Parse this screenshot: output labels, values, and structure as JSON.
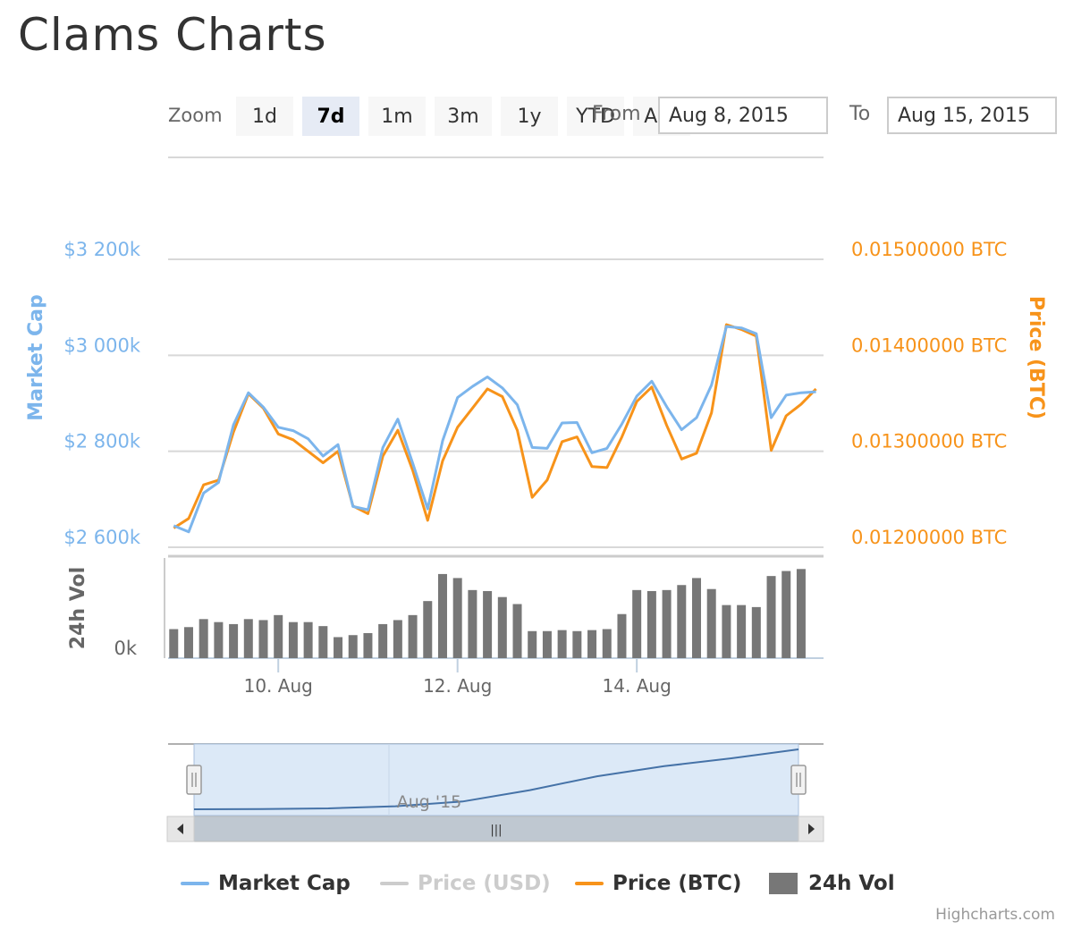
{
  "title": "Clams Charts",
  "zoom": {
    "label": "Zoom",
    "buttons": [
      "1d",
      "7d",
      "1m",
      "3m",
      "1y",
      "YTD",
      "ALL"
    ],
    "active": "7d"
  },
  "range": {
    "from_label": "From",
    "from_value": "Aug 8, 2015",
    "to_label": "To",
    "to_value": "Aug 15, 2015"
  },
  "colors": {
    "market_cap": "#7cb5ec",
    "price_usd": "#cccccc",
    "price_btc": "#f7931a",
    "volume": "#777777",
    "navigator_fill": "#dce9f7",
    "navigator_line": "#4572a7"
  },
  "chart_data": {
    "type": "line",
    "x_ticks": [
      "10. Aug",
      "12. Aug",
      "14. Aug"
    ],
    "x_ticks_time": [
      40,
      88,
      136
    ],
    "x_range_hours": [
      10.5,
      186
    ],
    "left_axis": {
      "title": "Market Cap",
      "tick_labels": [
        "$3 200k",
        "$3 000k",
        "$2 800k",
        "$2 600k"
      ],
      "tick_values": [
        3200,
        3000,
        2800,
        2600
      ],
      "range": [
        2600,
        3200
      ]
    },
    "right_axis": {
      "title": "Price (BTC)",
      "tick_labels": [
        "0.01500000 BTC",
        "0.01400000 BTC",
        "0.01300000 BTC",
        "0.01200000 BTC"
      ],
      "tick_values": [
        0.015,
        0.014,
        0.013,
        0.012
      ],
      "range": [
        0.012,
        0.015
      ]
    },
    "volume_axis": {
      "title": "24h Vol",
      "tick_labels": [
        "0k"
      ],
      "range": [
        0,
        100
      ]
    },
    "series": [
      {
        "name": "Market Cap",
        "x_hours": [
          12,
          16,
          20,
          24,
          28,
          32,
          36,
          40,
          44,
          48,
          52,
          56,
          60,
          64,
          68,
          72,
          76,
          80,
          84,
          88,
          92,
          96,
          100,
          104,
          108,
          112,
          116,
          120,
          124,
          128,
          132,
          136,
          140,
          144,
          148,
          152,
          156,
          160,
          164,
          168,
          172,
          176,
          180,
          184
        ],
        "values": [
          2645,
          2632,
          2713,
          2735,
          2855,
          2922,
          2892,
          2850,
          2843,
          2826,
          2790,
          2814,
          2685,
          2678,
          2808,
          2867,
          2775,
          2680,
          2822,
          2912,
          2935,
          2955,
          2932,
          2897,
          2808,
          2806,
          2859,
          2860,
          2797,
          2806,
          2857,
          2915,
          2946,
          2893,
          2845,
          2870,
          2938,
          3060,
          3057,
          3045,
          2870,
          2917,
          2922,
          2924
        ]
      },
      {
        "name": "Price (USD)",
        "hidden": true,
        "values": []
      },
      {
        "name": "Price (BTC)",
        "x_hours": [
          12,
          16,
          20,
          24,
          28,
          32,
          36,
          40,
          44,
          48,
          52,
          56,
          60,
          64,
          68,
          72,
          76,
          80,
          84,
          88,
          92,
          96,
          100,
          104,
          108,
          112,
          116,
          120,
          124,
          128,
          132,
          136,
          140,
          144,
          148,
          152,
          156,
          160,
          164,
          168,
          172,
          176,
          180,
          184
        ],
        "values": [
          0.0122,
          0.0123,
          0.01265,
          0.0127,
          0.0132,
          0.0136,
          0.01345,
          0.01318,
          0.01312,
          0.013,
          0.01288,
          0.013,
          0.01243,
          0.01235,
          0.01295,
          0.01322,
          0.0128,
          0.01228,
          0.0129,
          0.01325,
          0.01345,
          0.01365,
          0.01357,
          0.01322,
          0.01252,
          0.0127,
          0.0131,
          0.01315,
          0.01284,
          0.01283,
          0.01315,
          0.01352,
          0.01367,
          0.01327,
          0.01292,
          0.01298,
          0.0134,
          0.01432,
          0.01427,
          0.0142,
          0.01301,
          0.01337,
          0.01349,
          0.01365
        ]
      },
      {
        "name": "24h Vol",
        "type": "bar",
        "x_hours": [
          12,
          16,
          20,
          24,
          28,
          32,
          36,
          40,
          44,
          48,
          52,
          56,
          60,
          64,
          68,
          72,
          76,
          80,
          84,
          88,
          92,
          96,
          100,
          104,
          108,
          112,
          116,
          120,
          124,
          128,
          132,
          136,
          140,
          144,
          148,
          152,
          156,
          160,
          164,
          168,
          172,
          176,
          180,
          184
        ],
        "values": [
          29,
          31,
          39,
          36,
          34,
          39,
          38,
          43,
          36,
          36,
          32,
          21,
          23,
          25,
          34,
          38,
          43,
          57,
          84,
          80,
          68,
          67,
          61,
          54,
          27,
          27,
          28,
          27,
          28,
          29,
          44,
          68,
          67,
          68,
          73,
          80,
          69,
          53,
          53,
          51,
          82,
          87,
          89,
          0
        ]
      }
    ],
    "navigator": {
      "label": "Aug '15",
      "line_values": [
        0.0,
        0.005,
        0.015,
        0.05,
        0.13,
        0.32,
        0.55,
        0.72,
        0.85,
        1.0
      ]
    },
    "legend": [
      "Market Cap",
      "Price (USD)",
      "Price (BTC)",
      "24h Vol"
    ],
    "credits": "Highcharts.com"
  }
}
